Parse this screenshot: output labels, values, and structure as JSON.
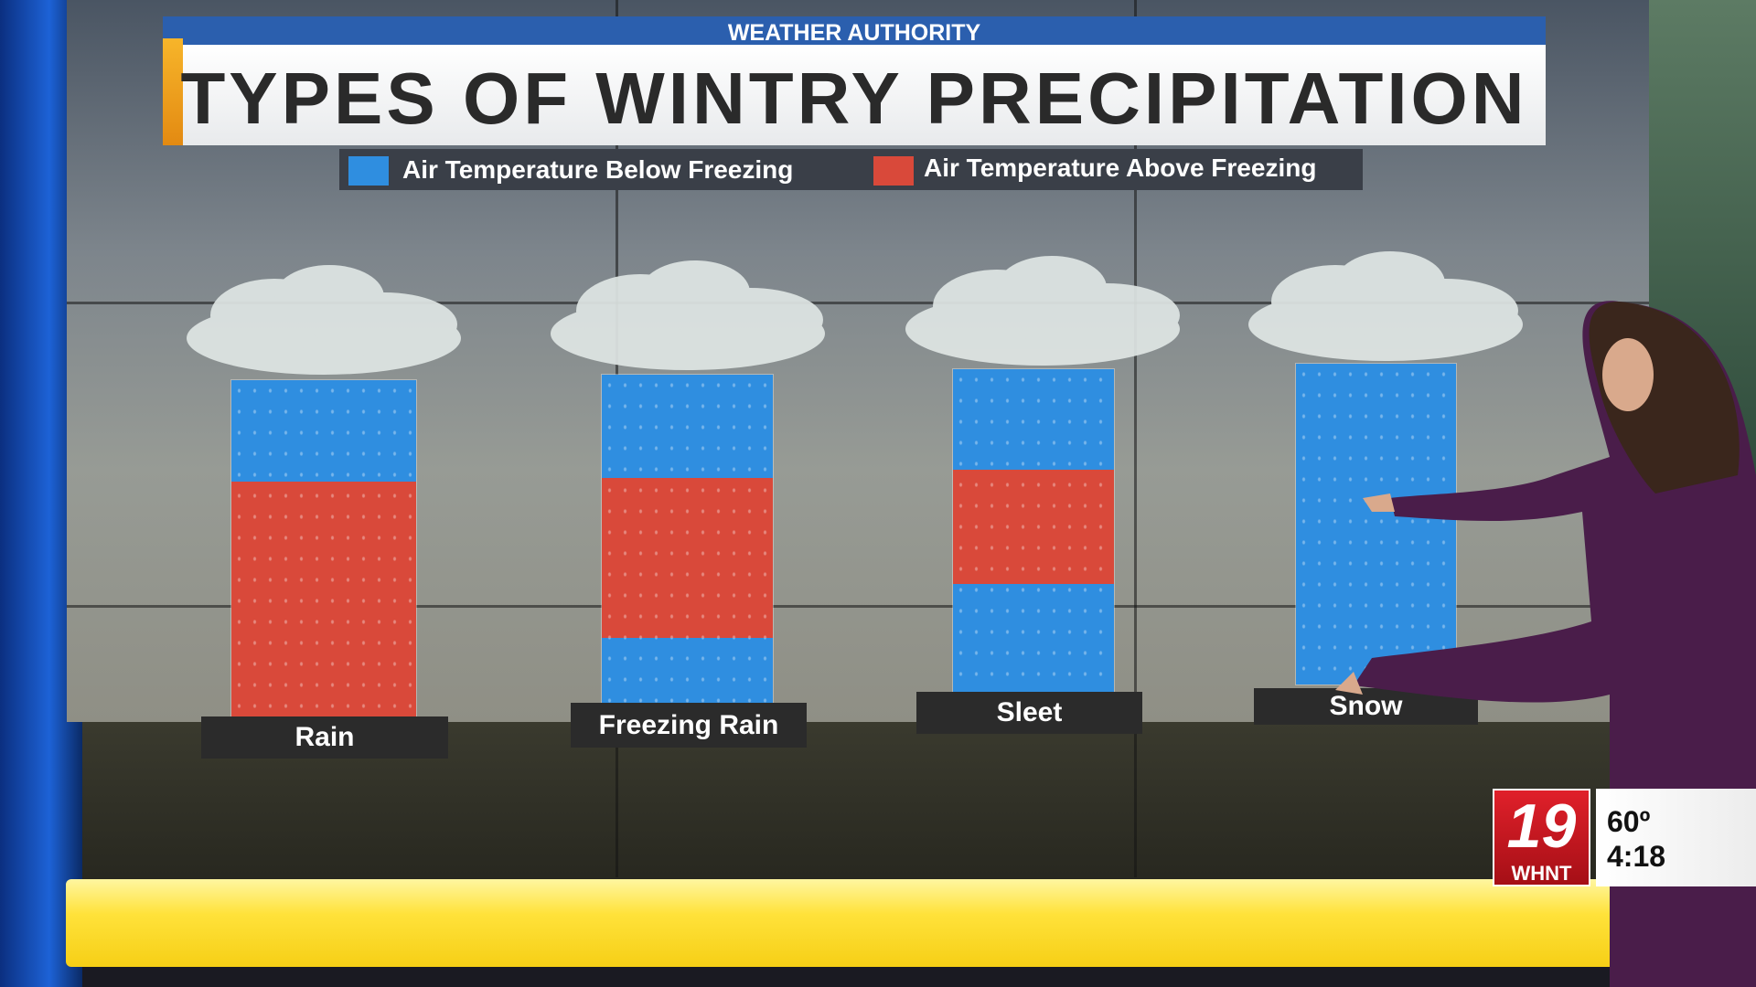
{
  "header": {
    "brand": "WEATHER AUTHORITY",
    "title": "TYPES OF WINTRY PRECIPITATION"
  },
  "legend": [
    {
      "label": "Air Temperature Below Freezing",
      "color": "#2f8ee0"
    },
    {
      "label": "Air Temperature Above Freezing",
      "color": "#d9493a"
    }
  ],
  "columns": [
    {
      "label": "Rain"
    },
    {
      "label": "Freezing Rain"
    },
    {
      "label": "Sleet"
    },
    {
      "label": "Snow"
    }
  ],
  "station": {
    "channel": "19",
    "call_sign": "WHNT",
    "temperature": "60º",
    "time": "4:18"
  }
}
